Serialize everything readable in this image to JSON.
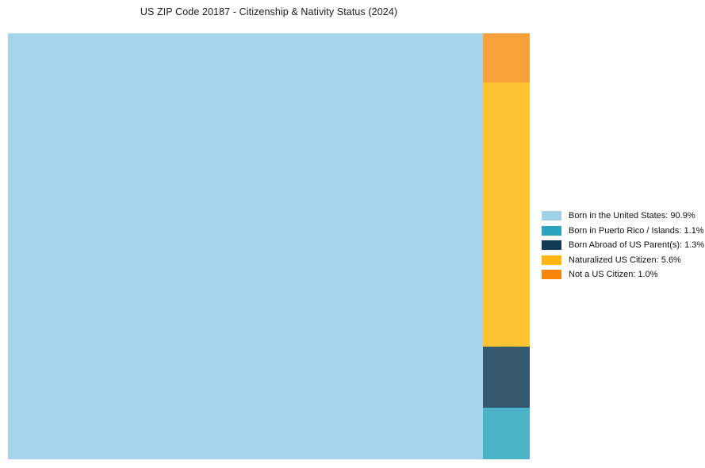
{
  "title": "US ZIP Code 20187 - Citizenship & Nativity Status (2024)",
  "chart_data": {
    "type": "treemap",
    "title": "US ZIP Code 20187 - Citizenship & Nativity Status (2024)",
    "unit": "%",
    "legend_position": "right",
    "categories": [
      "Born in the United States",
      "Born in Puerto Rico / Islands",
      "Born Abroad of US Parent(s)",
      "Naturalized US Citizen",
      "Not a US Citizen"
    ],
    "values": [
      90.9,
      1.1,
      1.3,
      5.6,
      1.0
    ],
    "legend_colors": [
      "#a3d1e8",
      "#2aa3bf",
      "#123c55",
      "#feb70f",
      "#f8860e"
    ],
    "tile_colors": [
      "#a5d4eb",
      "#4cb2c8",
      "#35596e",
      "#fec434",
      "#f9a13a"
    ],
    "layout_note": "Large tile fills left side full height; right column stacks top-to-bottom: Not a US Citizen, Naturalized US Citizen, Born Abroad of US Parent(s), Born in Puerto Rico / Islands"
  },
  "treemap": {
    "tiles": [
      {
        "name": "Born in the United States",
        "value": 90.9,
        "color": "#a5d4eb"
      },
      {
        "name": "Not a US Citizen",
        "value": 1.0,
        "color": "#f9a13a"
      },
      {
        "name": "Naturalized US Citizen",
        "value": 5.6,
        "color": "#fec434"
      },
      {
        "name": "Born Abroad of US Parent(s)",
        "value": 1.3,
        "color": "#35596e"
      },
      {
        "name": "Born in Puerto Rico / Islands",
        "value": 1.1,
        "color": "#4cb2c8"
      }
    ]
  },
  "legend": {
    "items": [
      {
        "label": "Born in the United States: 90.9%",
        "color": "#a3d1e8"
      },
      {
        "label": "Born in Puerto Rico / Islands: 1.1%",
        "color": "#2aa3bf"
      },
      {
        "label": "Born Abroad of US Parent(s): 1.3%",
        "color": "#123c55"
      },
      {
        "label": "Naturalized US Citizen: 5.6%",
        "color": "#feb70f"
      },
      {
        "label": "Not a US Citizen: 1.0%",
        "color": "#f8860e"
      }
    ]
  }
}
